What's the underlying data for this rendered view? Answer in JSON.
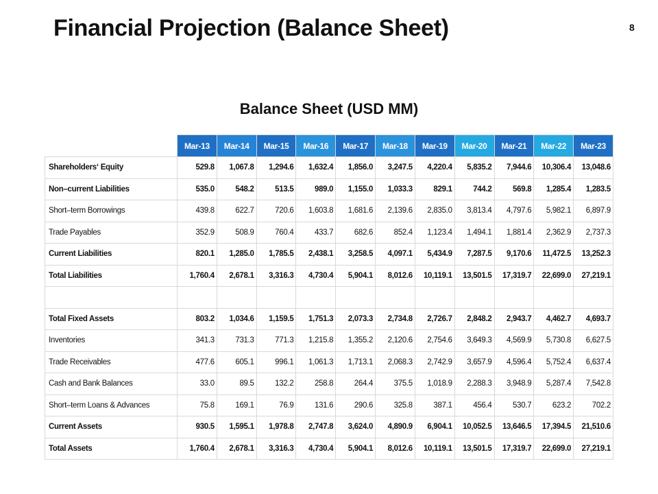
{
  "header": {
    "title": "Financial Projection (Balance Sheet)",
    "page_number": "8"
  },
  "table": {
    "title": "Balance Sheet (USD MM)",
    "columns": [
      {
        "label": "Mar-13",
        "color": "#1f6fc5"
      },
      {
        "label": "Mar-14",
        "color": "#2584d5"
      },
      {
        "label": "Mar-15",
        "color": "#1f6fc5"
      },
      {
        "label": "Mar-16",
        "color": "#2b93dc"
      },
      {
        "label": "Mar-17",
        "color": "#1f6fc5"
      },
      {
        "label": "Mar-18",
        "color": "#2b93dc"
      },
      {
        "label": "Mar-19",
        "color": "#1f6fc5"
      },
      {
        "label": "Mar-20",
        "color": "#26a9e0"
      },
      {
        "label": "Mar-21",
        "color": "#1f6fc5"
      },
      {
        "label": "Mar-22",
        "color": "#26a9e0"
      },
      {
        "label": "Mar-23",
        "color": "#1f6fc5"
      }
    ],
    "rows": [
      {
        "label": "Shareholders‘ Equity",
        "bold": true,
        "values": [
          "529.8",
          "1,067.8",
          "1,294.6",
          "1,632.4",
          "1,856.0",
          "3,247.5",
          "4,220.4",
          "5,835.2",
          "7,944.6",
          "10,306.4",
          "13,048.6"
        ]
      },
      {
        "label": "Non–current Liabilities",
        "bold": true,
        "values": [
          "535.0",
          "548.2",
          "513.5",
          "989.0",
          "1,155.0",
          "1,033.3",
          "829.1",
          "744.2",
          "569.8",
          "1,285.4",
          "1,283.5"
        ]
      },
      {
        "label": "Short–term Borrowings",
        "bold": false,
        "values": [
          "439.8",
          "622.7",
          "720.6",
          "1,603.8",
          "1,681.6",
          "2,139.6",
          "2,835.0",
          "3,813.4",
          "4,797.6",
          "5,982.1",
          "6,897.9"
        ]
      },
      {
        "label": "Trade Payables",
        "bold": false,
        "values": [
          "352.9",
          "508.9",
          "760.4",
          "433.7",
          "682.6",
          "852.4",
          "1,123.4",
          "1,494.1",
          "1,881.4",
          "2,362.9",
          "2,737.3"
        ]
      },
      {
        "label": "Current Liabilities",
        "bold": true,
        "values": [
          "820.1",
          "1,285.0",
          "1,785.5",
          "2,438.1",
          "3,258.5",
          "4,097.1",
          "5,434.9",
          "7,287.5",
          "9,170.6",
          "11,472.5",
          "13,252.3"
        ]
      },
      {
        "label": "Total Liabilities",
        "bold": true,
        "values": [
          "1,760.4",
          "2,678.1",
          "3,316.3",
          "4,730.4",
          "5,904.1",
          "8,012.6",
          "10,119.1",
          "13,501.5",
          "17,319.7",
          "22,699.0",
          "27,219.1"
        ]
      },
      {
        "label": "Total Fixed Assets",
        "bold": true,
        "values": [
          "803.2",
          "1,034.6",
          "1,159.5",
          "1,751.3",
          "2,073.3",
          "2,734.8",
          "2,726.7",
          "2,848.2",
          "2,943.7",
          "4,462.7",
          "4,693.7"
        ]
      },
      {
        "label": "Inventories",
        "bold": false,
        "values": [
          "341.3",
          "731.3",
          "771.3",
          "1,215.8",
          "1,355.2",
          "2,120.6",
          "2,754.6",
          "3,649.3",
          "4,569.9",
          "5,730.8",
          "6,627.5"
        ]
      },
      {
        "label": "Trade Receivables",
        "bold": false,
        "values": [
          "477.6",
          "605.1",
          "996.1",
          "1,061.3",
          "1,713.1",
          "2,068.3",
          "2,742.9",
          "3,657.9",
          "4,596.4",
          "5,752.4",
          "6,637.4"
        ]
      },
      {
        "label": "Cash and Bank Balances",
        "bold": false,
        "values": [
          "33.0",
          "89.5",
          "132.2",
          "258.8",
          "264.4",
          "375.5",
          "1,018.9",
          "2,288.3",
          "3,948.9",
          "5,287.4",
          "7,542.8"
        ]
      },
      {
        "label": "Short–term Loans & Advances",
        "bold": false,
        "values": [
          "75.8",
          "169.1",
          "76.9",
          "131.6",
          "290.6",
          "325.8",
          "387.1",
          "456.4",
          "530.7",
          "623.2",
          "702.2"
        ]
      },
      {
        "label": "Current Assets",
        "bold": true,
        "values": [
          "930.5",
          "1,595.1",
          "1,978.8",
          "2,747.8",
          "3,624.0",
          "4,890.9",
          "6,904.1",
          "10,052.5",
          "13,646.5",
          "17,394.5",
          "21,510.6"
        ]
      },
      {
        "label": "Total Assets",
        "bold": true,
        "values": [
          "1,760.4",
          "2,678.1",
          "3,316.3",
          "4,730.4",
          "5,904.1",
          "8,012.6",
          "10,119.1",
          "13,501.5",
          "17,319.7",
          "22,699.0",
          "27,219.1"
        ]
      }
    ]
  }
}
